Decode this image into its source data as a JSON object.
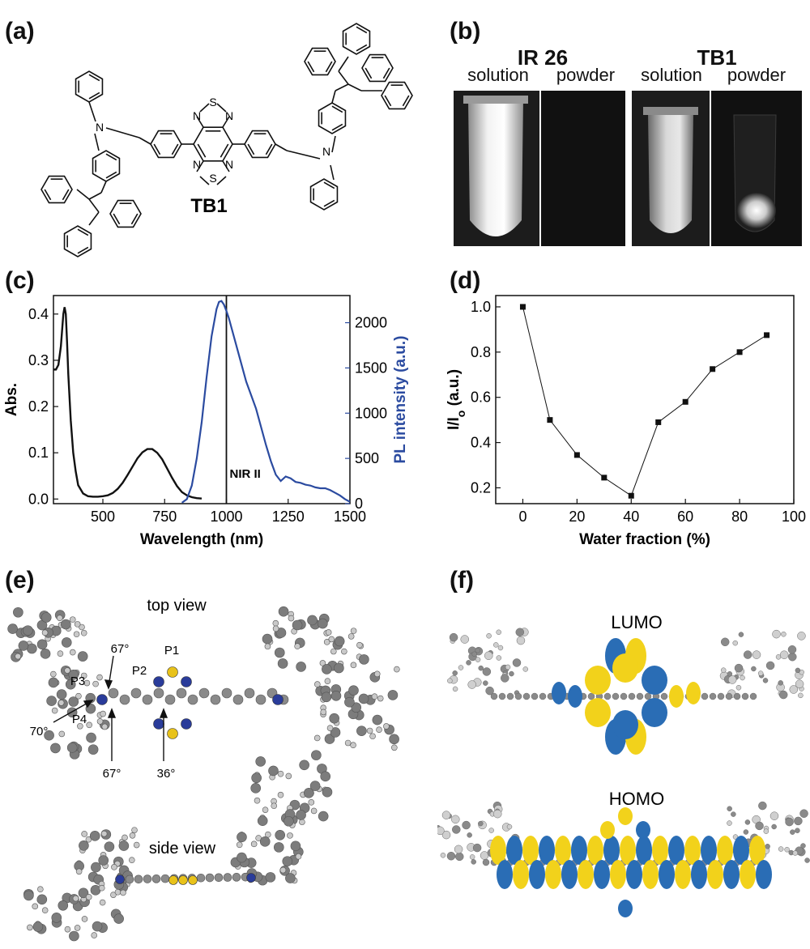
{
  "panel_labels": {
    "a": "(a)",
    "b": "(b)",
    "c": "(c)",
    "d": "(d)",
    "e": "(e)",
    "f": "(f)"
  },
  "panel_a": {
    "compound_label": "TB1",
    "atoms": {
      "n": "N",
      "s": "S"
    }
  },
  "panel_b": {
    "groups": [
      {
        "title": "IR 26",
        "captions": [
          "solution",
          "powder"
        ]
      },
      {
        "title": "TB1",
        "captions": [
          "solution",
          "powder"
        ]
      }
    ]
  },
  "panel_e": {
    "top_view_label": "top view",
    "side_view_label": "side view",
    "plane_labels": [
      "P1",
      "P2",
      "P3",
      "P4"
    ],
    "angles": [
      "67°",
      "70°",
      "67°",
      "36°"
    ]
  },
  "panel_f": {
    "lumo_label": "LUMO",
    "homo_label": "HOMO",
    "colors": {
      "lobe_a": "#2a6db5",
      "lobe_b": "#f2d21b",
      "atom": "#8a8a8a"
    }
  },
  "chart_data": [
    {
      "id": "c",
      "type": "line",
      "xlabel": "Wavelength (nm)",
      "ylabel": "Abs.",
      "y2label": "PL intensity (a.u.)",
      "xlim": [
        300,
        1500
      ],
      "ylim": [
        -0.01,
        0.44
      ],
      "y2lim": [
        0,
        2300
      ],
      "xticks": [
        500,
        750,
        1000,
        1250,
        1500
      ],
      "yticks": [
        0.0,
        0.1,
        0.2,
        0.3,
        0.4
      ],
      "y2ticks": [
        0,
        500,
        1000,
        1500,
        2000
      ],
      "ytick_labels": [
        "0.0",
        "0.1",
        "0.2",
        "0.3",
        "0.4"
      ],
      "annotation": {
        "text": "NIR II",
        "x": 1000
      },
      "colors": {
        "abs": "#111111",
        "pl": "#2b4ba0"
      },
      "series": [
        {
          "axis": "left",
          "x": [
            300,
            310,
            320,
            330,
            340,
            345,
            350,
            355,
            360,
            370,
            380,
            390,
            400,
            420,
            440,
            460,
            480,
            500,
            520,
            540,
            560,
            580,
            600,
            620,
            640,
            660,
            680,
            700,
            720,
            740,
            760,
            780,
            800,
            820,
            840,
            860,
            880,
            900
          ],
          "values": [
            0.28,
            0.28,
            0.29,
            0.33,
            0.4,
            0.415,
            0.4,
            0.34,
            0.27,
            0.17,
            0.1,
            0.06,
            0.03,
            0.012,
            0.006,
            0.005,
            0.005,
            0.006,
            0.008,
            0.013,
            0.022,
            0.035,
            0.052,
            0.07,
            0.088,
            0.101,
            0.108,
            0.108,
            0.1,
            0.086,
            0.066,
            0.046,
            0.028,
            0.015,
            0.008,
            0.004,
            0.002,
            0.001
          ]
        },
        {
          "axis": "right",
          "x": [
            820,
            840,
            860,
            880,
            900,
            920,
            940,
            960,
            970,
            980,
            990,
            1000,
            1010,
            1020,
            1040,
            1060,
            1080,
            1100,
            1120,
            1140,
            1160,
            1180,
            1200,
            1220,
            1240,
            1260,
            1280,
            1300,
            1320,
            1340,
            1360,
            1380,
            1400,
            1420,
            1440,
            1460,
            1480,
            1500
          ],
          "values": [
            10,
            50,
            200,
            500,
            900,
            1400,
            1850,
            2150,
            2230,
            2240,
            2200,
            2130,
            2050,
            1950,
            1750,
            1550,
            1350,
            1200,
            1050,
            850,
            650,
            470,
            320,
            250,
            300,
            280,
            240,
            230,
            210,
            200,
            180,
            170,
            170,
            150,
            120,
            90,
            50,
            20
          ]
        }
      ]
    },
    {
      "id": "d",
      "type": "line",
      "xlabel": "Water fraction (%)",
      "ylabel": "I/I",
      "ylabel_sub": "o",
      "ylabel_unit": " (a.u.)",
      "xlim": [
        -10,
        100
      ],
      "ylim": [
        0.13,
        1.05
      ],
      "xticks": [
        0,
        20,
        40,
        60,
        80,
        100
      ],
      "yticks": [
        0.2,
        0.4,
        0.6,
        0.8,
        1.0
      ],
      "ytick_labels": [
        "0.2",
        "0.4",
        "0.6",
        "0.8",
        "1.0"
      ],
      "x": [
        0,
        10,
        20,
        30,
        40,
        50,
        60,
        70,
        80,
        90
      ],
      "values": [
        1.0,
        0.5,
        0.345,
        0.245,
        0.165,
        0.49,
        0.58,
        0.725,
        0.8,
        0.875
      ]
    }
  ]
}
